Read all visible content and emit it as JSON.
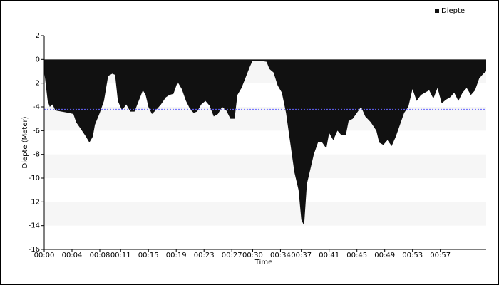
{
  "chart_data": {
    "type": "area",
    "title_y": "Diepte (Meter)",
    "xlabel": "Time",
    "legend": "top-right",
    "series": [
      {
        "name": "Diepte",
        "color": "#111111",
        "x": [
          0,
          0.5,
          0.8,
          1.2,
          1.6,
          2.5,
          3.5,
          4.2,
          4.6,
          5.2,
          6.0,
          6.5,
          7.0,
          7.3,
          8.0,
          8.6,
          9.2,
          9.8,
          10.2,
          10.6,
          11.2,
          11.8,
          12.4,
          13.0,
          13.6,
          14.2,
          14.6,
          15.0,
          15.5,
          16.2,
          16.8,
          17.5,
          18.0,
          18.6,
          19.2,
          19.8,
          20.4,
          21.0,
          21.5,
          22.0,
          22.6,
          23.2,
          23.8,
          24.4,
          25.0,
          25.6,
          26.2,
          26.8,
          27.4,
          27.8,
          28.4,
          29.0,
          29.6,
          30.0,
          31.0,
          32.0,
          32.4,
          33.0,
          33.6,
          34.2,
          34.8,
          35.4,
          36.0,
          36.6,
          37.0,
          37.4,
          37.8,
          38.4,
          38.8,
          39.4,
          40.0,
          40.6,
          41.0,
          41.6,
          42.2,
          42.8,
          43.4,
          43.8,
          44.4,
          45.0,
          45.6,
          46.2,
          47.0,
          47.8,
          48.2,
          48.8,
          49.4,
          50.0,
          50.6,
          51.2,
          51.8,
          52.4,
          53.0,
          53.6,
          54.2,
          54.8,
          55.4,
          56.0,
          56.6,
          57.2,
          57.8,
          58.4,
          59.0,
          59.6,
          60.2,
          60.8,
          61.4,
          62.0,
          62.6,
          63.2,
          63.6
        ],
        "values": [
          -1.0,
          -3.5,
          -4.0,
          -3.8,
          -4.3,
          -4.4,
          -4.5,
          -4.6,
          -5.3,
          -5.8,
          -6.5,
          -7.0,
          -6.5,
          -5.5,
          -4.5,
          -3.5,
          -1.4,
          -1.2,
          -1.3,
          -3.5,
          -4.3,
          -3.8,
          -4.4,
          -4.4,
          -3.5,
          -2.6,
          -3.0,
          -4.0,
          -4.6,
          -4.2,
          -3.8,
          -3.2,
          -3.0,
          -2.9,
          -1.9,
          -2.5,
          -3.5,
          -4.2,
          -4.5,
          -4.4,
          -3.8,
          -3.5,
          -3.9,
          -4.8,
          -4.6,
          -4.0,
          -4.3,
          -5.0,
          -5.0,
          -3.0,
          -2.4,
          -1.5,
          -0.6,
          -0.1,
          -0.1,
          -0.2,
          -0.8,
          -1.1,
          -2.2,
          -2.8,
          -4.5,
          -7.0,
          -9.5,
          -11.0,
          -13.5,
          -14.0,
          -10.5,
          -9.0,
          -8.0,
          -7.0,
          -7.0,
          -7.5,
          -6.2,
          -6.8,
          -6.0,
          -6.4,
          -6.4,
          -5.2,
          -5.0,
          -4.5,
          -4.0,
          -4.8,
          -5.3,
          -6.0,
          -7.0,
          -7.2,
          -6.8,
          -7.3,
          -6.5,
          -5.5,
          -4.5,
          -4.0,
          -2.5,
          -3.5,
          -3.0,
          -2.8,
          -2.6,
          -3.3,
          -2.4,
          -3.7,
          -3.4,
          -3.2,
          -2.8,
          -3.5,
          -2.8,
          -2.4,
          -3.0,
          -2.6,
          -1.6,
          -1.2,
          -1.0
        ]
      }
    ],
    "reference_line": {
      "value": -4.2,
      "color": "#6666ff"
    },
    "xlim": [
      0,
      63.6
    ],
    "xticks": [
      {
        "value": 0,
        "label": "00:00"
      },
      {
        "value": 4,
        "label": "00:04"
      },
      {
        "value": 8,
        "label": "00:08"
      },
      {
        "value": 11,
        "label": "00:11"
      },
      {
        "value": 15,
        "label": "00:15"
      },
      {
        "value": 19,
        "label": "00:19"
      },
      {
        "value": 23,
        "label": "00:23"
      },
      {
        "value": 27,
        "label": "00:27"
      },
      {
        "value": 30,
        "label": "00:30"
      },
      {
        "value": 34,
        "label": "00:34"
      },
      {
        "value": 37,
        "label": "00:37"
      },
      {
        "value": 41,
        "label": "00:41"
      },
      {
        "value": 45,
        "label": "00:45"
      },
      {
        "value": 49,
        "label": "00:49"
      },
      {
        "value": 53,
        "label": "00:53"
      },
      {
        "value": 57,
        "label": "00:57"
      }
    ],
    "ylim": [
      -16,
      2
    ],
    "yticks": [
      -16,
      -14,
      -12,
      -10,
      -8,
      -6,
      -4,
      -2,
      0,
      2
    ],
    "bands": true
  }
}
